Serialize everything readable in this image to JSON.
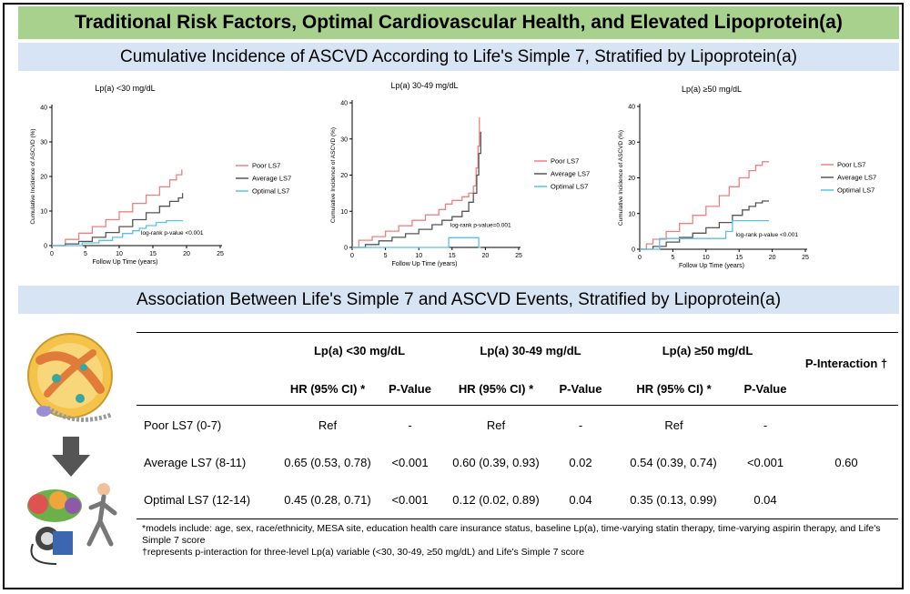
{
  "title": "Traditional Risk Factors, Optimal Cardiovascular Health, and Elevated Lipoprotein(a)",
  "section1_title": "Cumulative Incidence of ASCVD According to Life's Simple 7, Stratified by Lipoprotein(a)",
  "section2_title": "Association Between Life's Simple 7 and ASCVD Events, Stratified by Lipoprotein(a)",
  "colors": {
    "poor": "#f08080",
    "average": "#555555",
    "optimal": "#5bc0e8",
    "title_bg": "#a9d18e",
    "section_bg": "#d6e4f3"
  },
  "chart_data": [
    {
      "type": "line",
      "title": "Lp(a) <30 mg/dL",
      "xlabel": "Follow Up Time (years)",
      "ylabel": "Cumulative Incidence of ASCVD (%)",
      "xlim": [
        0,
        25
      ],
      "ylim": [
        0,
        40
      ],
      "xticks": [
        0,
        5,
        10,
        15,
        20,
        25
      ],
      "yticks": [
        0,
        10,
        20,
        30,
        40
      ],
      "annotation": "log-rank p-value <0.001",
      "legend_position": "right",
      "series": [
        {
          "name": "Poor LS7",
          "points": [
            [
              0,
              0
            ],
            [
              2,
              1.8
            ],
            [
              4,
              3.6
            ],
            [
              6,
              5.5
            ],
            [
              8,
              7.5
            ],
            [
              10,
              9.8
            ],
            [
              12,
              12.2
            ],
            [
              14,
              14.6
            ],
            [
              16,
              17
            ],
            [
              17.5,
              19
            ],
            [
              18.5,
              20.5
            ],
            [
              19.3,
              22
            ]
          ]
        },
        {
          "name": "Average LS7",
          "points": [
            [
              0,
              0
            ],
            [
              2,
              0.5
            ],
            [
              4,
              1.2
            ],
            [
              6,
              2.4
            ],
            [
              8,
              3.8
            ],
            [
              10,
              5.5
            ],
            [
              12,
              7.5
            ],
            [
              14,
              9.5
            ],
            [
              16,
              11.4
            ],
            [
              17.5,
              12.8
            ],
            [
              18.8,
              13.8
            ],
            [
              19.4,
              15.2
            ]
          ]
        },
        {
          "name": "Optimal LS7",
          "points": [
            [
              0,
              0
            ],
            [
              3,
              0
            ],
            [
              4.5,
              0.8
            ],
            [
              7,
              1.5
            ],
            [
              9,
              2.4
            ],
            [
              10.5,
              3.5
            ],
            [
              12,
              4.3
            ],
            [
              13,
              5
            ],
            [
              14,
              5.8
            ],
            [
              15.5,
              6.7
            ],
            [
              17,
              7.2
            ],
            [
              19.4,
              7.3
            ]
          ]
        }
      ]
    },
    {
      "type": "line",
      "title": "Lp(a) 30-49 mg/dL",
      "xlabel": "Follow Up Time (years)",
      "ylabel": "Cumulative Incidence of ASCVD (%)",
      "xlim": [
        0,
        25
      ],
      "ylim": [
        0,
        40
      ],
      "xticks": [
        0,
        5,
        10,
        15,
        20,
        25
      ],
      "yticks": [
        0,
        10,
        20,
        30,
        40
      ],
      "annotation": "log-rank p-value=0.001",
      "legend_position": "right",
      "series": [
        {
          "name": "Poor LS7",
          "points": [
            [
              0,
              0
            ],
            [
              1,
              2
            ],
            [
              3,
              3
            ],
            [
              5,
              4.5
            ],
            [
              7,
              6
            ],
            [
              9,
              7.5
            ],
            [
              11,
              9
            ],
            [
              13,
              10.5
            ],
            [
              14,
              12
            ],
            [
              15,
              13
            ],
            [
              16.5,
              14
            ],
            [
              17.5,
              15
            ],
            [
              18.2,
              17
            ],
            [
              18.6,
              22
            ],
            [
              18.9,
              28
            ],
            [
              19.1,
              36
            ]
          ]
        },
        {
          "name": "Average LS7",
          "points": [
            [
              0,
              0
            ],
            [
              2,
              0.8
            ],
            [
              4,
              1.8
            ],
            [
              6,
              2.8
            ],
            [
              8,
              3.8
            ],
            [
              10,
              5
            ],
            [
              12,
              6.3
            ],
            [
              13.5,
              7.5
            ],
            [
              15,
              8.5
            ],
            [
              16.5,
              10
            ],
            [
              17.5,
              12.5
            ],
            [
              18.2,
              15
            ],
            [
              18.7,
              20
            ],
            [
              19,
              26
            ],
            [
              19.3,
              32
            ]
          ]
        },
        {
          "name": "Optimal LS7",
          "points": [
            [
              0,
              0
            ],
            [
              14.5,
              0
            ],
            [
              14.5,
              2.7
            ],
            [
              19,
              2.7
            ],
            [
              19,
              0
            ],
            [
              19.3,
              0
            ]
          ]
        }
      ]
    },
    {
      "type": "line",
      "title": "Lp(a) ≥50 mg/dL",
      "xlabel": "Follow Up Time (years)",
      "ylabel": "Cumulative Incidence of ASCVD (%)",
      "xlim": [
        0,
        25
      ],
      "ylim": [
        0,
        40
      ],
      "xticks": [
        0,
        5,
        10,
        15,
        20,
        25
      ],
      "yticks": [
        0,
        10,
        20,
        30,
        40
      ],
      "annotation": "log-rank p-value <0.001",
      "legend_position": "right",
      "series": [
        {
          "name": "Poor LS7",
          "points": [
            [
              0,
              0
            ],
            [
              1,
              1.5
            ],
            [
              2,
              2.8
            ],
            [
              4,
              5
            ],
            [
              6,
              7.2
            ],
            [
              8,
              9.5
            ],
            [
              10,
              12
            ],
            [
              12,
              15
            ],
            [
              13.5,
              17.5
            ],
            [
              15,
              20
            ],
            [
              16.5,
              22
            ],
            [
              17.5,
              23.5
            ],
            [
              18.5,
              24.5
            ],
            [
              19.5,
              24.5
            ]
          ]
        },
        {
          "name": "Average LS7",
          "points": [
            [
              0,
              0
            ],
            [
              2,
              0.8
            ],
            [
              4,
              2
            ],
            [
              6,
              3.3
            ],
            [
              8,
              4.5
            ],
            [
              10,
              6
            ],
            [
              12,
              7.5
            ],
            [
              14,
              9.5
            ],
            [
              15.5,
              11
            ],
            [
              16.5,
              12
            ],
            [
              17.5,
              13
            ],
            [
              18.5,
              13.5
            ],
            [
              19.5,
              13.5
            ]
          ]
        },
        {
          "name": "Optimal LS7",
          "points": [
            [
              0,
              0
            ],
            [
              3,
              0
            ],
            [
              3,
              3
            ],
            [
              13,
              3
            ],
            [
              13,
              5
            ],
            [
              14,
              5
            ],
            [
              14,
              8
            ],
            [
              19.5,
              8
            ]
          ]
        }
      ]
    }
  ],
  "table": {
    "groups": [
      "Lp(a) <30 mg/dL",
      "Lp(a) 30-49 mg/dL",
      "Lp(a) ≥50 mg/dL"
    ],
    "subheaders": [
      "HR (95% CI) *",
      "P-Value",
      "HR (95% CI) *",
      "P-Value",
      "HR (95% CI) *",
      "P-Value"
    ],
    "interaction_header": "P-Interaction †",
    "rows": [
      {
        "label": "Poor LS7 (0-7)",
        "cells": [
          "Ref",
          "-",
          "Ref",
          "-",
          "Ref",
          "-"
        ],
        "interaction": ""
      },
      {
        "label": "Average LS7 (8-11)",
        "cells": [
          "0.65 (0.53, 0.78)",
          "<0.001",
          "0.60 (0.39, 0.93)",
          "0.02",
          "0.54 (0.39, 0.74)",
          "<0.001"
        ],
        "interaction": "0.60"
      },
      {
        "label": "Optimal LS7 (12-14)",
        "cells": [
          "0.45 (0.28, 0.71)",
          "<0.001",
          "0.12 (0.02, 0.89)",
          "0.04",
          "0.35 (0.13, 0.99)",
          "0.04"
        ],
        "interaction": ""
      }
    ]
  },
  "footnotes": {
    "f1": "*models include: age, sex, race/ethnicity, MESA site, education health care insurance status, baseline Lp(a), time-varying statin therapy, time-varying aspirin therapy, and Life's Simple 7 score",
    "f2": "†represents p-interaction for three-level Lp(a) variable (<30, 30-49, ≥50 mg/dL) and Life's Simple 7 score"
  }
}
